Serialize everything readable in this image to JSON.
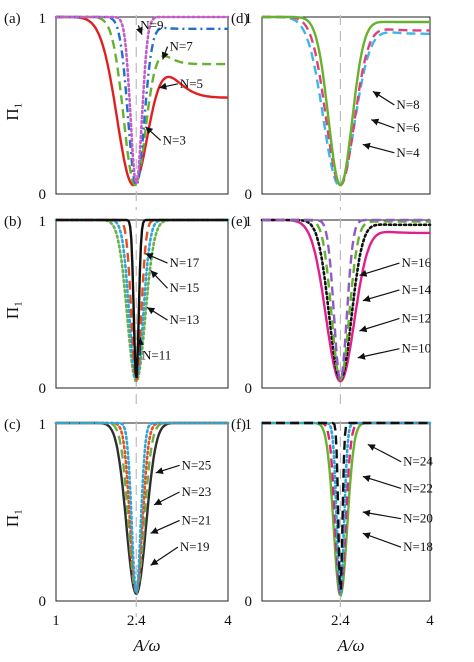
{
  "chart_data": {
    "type": "line",
    "xlabel": "A/ω",
    "ylabel": "Π₁",
    "xlim": [
      1,
      4
    ],
    "ylim": [
      0,
      1
    ],
    "x_ticks": [
      "1",
      "2.4",
      "4"
    ],
    "y_ticks": [
      "0",
      "1"
    ],
    "reference_line_x": 2.4,
    "panels": [
      {
        "label": "(a)",
        "series": [
          {
            "name": "N=3",
            "color": "#e02020",
            "style": "solid",
            "width": 0.4,
            "center": 2.35,
            "floor": 0.05,
            "right_tail": 0.52
          },
          {
            "name": "N=5",
            "color": "#66b22e",
            "style": "longdash",
            "width": 0.28,
            "center": 2.38,
            "floor": 0.05,
            "right_tail": 0.72
          },
          {
            "name": "N=7",
            "color": "#1f6fd1",
            "style": "dashdot",
            "width": 0.2,
            "center": 2.4,
            "floor": 0.05,
            "right_tail": 0.93
          },
          {
            "name": "N=9",
            "color": "#c65cc6",
            "style": "dotted",
            "width": 0.14,
            "center": 2.4,
            "floor": 0.06,
            "right_tail": 1.0
          }
        ],
        "labels": [
          {
            "text": "N=9",
            "side": "top"
          },
          {
            "text": "N=7",
            "side": "right"
          },
          {
            "text": "N=5",
            "side": "right"
          },
          {
            "text": "N=3",
            "side": "right"
          }
        ]
      },
      {
        "label": "(b)",
        "series": [
          {
            "name": "N=11",
            "color": "#6ab04c",
            "style": "dotted",
            "width": 0.22,
            "center": 2.4,
            "floor": 0.04,
            "right_tail": 1.0
          },
          {
            "name": "N=13",
            "color": "#2aa8d8",
            "style": "dotted",
            "width": 0.17,
            "center": 2.4,
            "floor": 0.05,
            "right_tail": 1.0
          },
          {
            "name": "N=15",
            "color": "#e8501e",
            "style": "longdash",
            "width": 0.12,
            "center": 2.4,
            "floor": 0.05,
            "right_tail": 1.0
          },
          {
            "name": "N=17",
            "color": "#111111",
            "style": "solid",
            "width": 0.06,
            "center": 2.4,
            "floor": 0.05,
            "right_tail": 1.0
          }
        ],
        "labels": [
          {
            "text": "N=17"
          },
          {
            "text": "N=15"
          },
          {
            "text": "N=13"
          },
          {
            "text": "N=11"
          }
        ]
      },
      {
        "label": "(c)",
        "series": [
          {
            "name": "N=19",
            "color": "#2f2f2f",
            "style": "solid",
            "width": 0.24,
            "center": 2.4,
            "floor": 0.04,
            "right_tail": 1.0
          },
          {
            "name": "N=21",
            "color": "#6ab04c",
            "style": "longdash",
            "width": 0.19,
            "center": 2.4,
            "floor": 0.05,
            "right_tail": 1.0
          },
          {
            "name": "N=23",
            "color": "#e8501e",
            "style": "dotted",
            "width": 0.15,
            "center": 2.4,
            "floor": 0.05,
            "right_tail": 1.0
          },
          {
            "name": "N=25",
            "color": "#2aa8d8",
            "style": "dotted",
            "width": 0.11,
            "center": 2.4,
            "floor": 0.05,
            "right_tail": 1.0
          }
        ],
        "labels": [
          {
            "text": "N=25"
          },
          {
            "text": "N=23"
          },
          {
            "text": "N=21"
          },
          {
            "text": "N=19"
          }
        ]
      },
      {
        "label": "(d)",
        "series": [
          {
            "name": "N=4",
            "color": "#3db6e8",
            "style": "longdash",
            "width": 0.4,
            "center": 2.38,
            "floor": 0.05,
            "right_tail": 0.9
          },
          {
            "name": "N=6",
            "color": "#e0407a",
            "style": "longdash",
            "width": 0.36,
            "center": 2.4,
            "floor": 0.05,
            "right_tail": 0.92
          },
          {
            "name": "N=8",
            "color": "#66b22e",
            "style": "solid",
            "width": 0.3,
            "center": 2.4,
            "floor": 0.05,
            "right_tail": 0.97
          }
        ],
        "labels": [
          {
            "text": "N=8"
          },
          {
            "text": "N=6"
          },
          {
            "text": "N=4"
          }
        ]
      },
      {
        "label": "(e)",
        "series": [
          {
            "name": "N=10",
            "color": "#e0208a",
            "style": "solid",
            "width": 0.36,
            "center": 2.4,
            "floor": 0.04,
            "right_tail": 0.92
          },
          {
            "name": "N=12",
            "color": "#111111",
            "style": "dotted",
            "width": 0.28,
            "center": 2.4,
            "floor": 0.05,
            "right_tail": 0.97
          },
          {
            "name": "N=14",
            "color": "#66b22e",
            "style": "longdash",
            "width": 0.22,
            "center": 2.4,
            "floor": 0.05,
            "right_tail": 0.99
          },
          {
            "name": "N=16",
            "color": "#8e5bc4",
            "style": "longdash",
            "width": 0.16,
            "center": 2.4,
            "floor": 0.05,
            "right_tail": 1.0
          }
        ],
        "labels": [
          {
            "text": "N=16"
          },
          {
            "text": "N=14"
          },
          {
            "text": "N=12"
          },
          {
            "text": "N=10"
          }
        ]
      },
      {
        "label": "(f)",
        "series": [
          {
            "name": "N=18",
            "color": "#66b22e",
            "style": "solid",
            "width": 0.17,
            "center": 2.4,
            "floor": 0.03,
            "right_tail": 1.0
          },
          {
            "name": "N=20",
            "color": "#e0207a",
            "style": "longdash",
            "width": 0.13,
            "center": 2.4,
            "floor": 0.04,
            "right_tail": 1.0
          },
          {
            "name": "N=22",
            "color": "#2aa8d8",
            "style": "dotted",
            "width": 0.09,
            "center": 2.4,
            "floor": 0.05,
            "right_tail": 1.0
          },
          {
            "name": "N=24",
            "color": "#111111",
            "style": "longdash",
            "width": 0.05,
            "center": 2.4,
            "floor": 0.05,
            "right_tail": 1.0
          }
        ],
        "labels": [
          {
            "text": "N=24"
          },
          {
            "text": "N=22"
          },
          {
            "text": "N=20"
          },
          {
            "text": "N=18"
          }
        ]
      }
    ]
  }
}
